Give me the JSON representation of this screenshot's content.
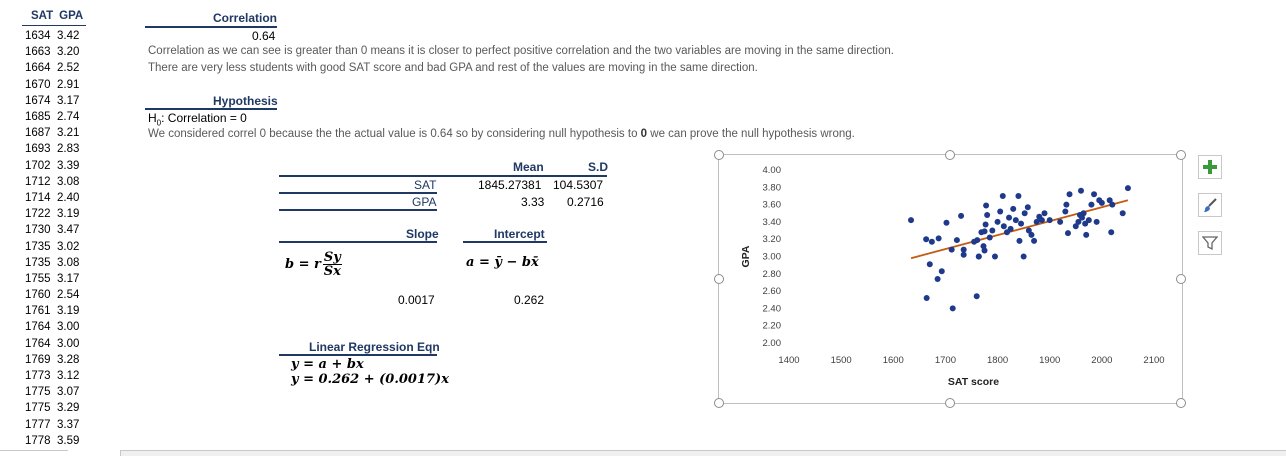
{
  "data_table": {
    "headers": [
      "SAT",
      "GPA"
    ],
    "rows": [
      [
        "1634",
        "3.42"
      ],
      [
        "1663",
        "3.20"
      ],
      [
        "1664",
        "2.52"
      ],
      [
        "1670",
        "2.91"
      ],
      [
        "1674",
        "3.17"
      ],
      [
        "1685",
        "2.74"
      ],
      [
        "1687",
        "3.21"
      ],
      [
        "1693",
        "2.83"
      ],
      [
        "1702",
        "3.39"
      ],
      [
        "1712",
        "3.08"
      ],
      [
        "1714",
        "2.40"
      ],
      [
        "1722",
        "3.19"
      ],
      [
        "1730",
        "3.47"
      ],
      [
        "1735",
        "3.02"
      ],
      [
        "1735",
        "3.08"
      ],
      [
        "1755",
        "3.17"
      ],
      [
        "1760",
        "2.54"
      ],
      [
        "1761",
        "3.19"
      ],
      [
        "1764",
        "3.00"
      ],
      [
        "1764",
        "3.00"
      ],
      [
        "1769",
        "3.28"
      ],
      [
        "1773",
        "3.12"
      ],
      [
        "1775",
        "3.07"
      ],
      [
        "1775",
        "3.29"
      ],
      [
        "1777",
        "3.37"
      ],
      [
        "1778",
        "3.59"
      ]
    ]
  },
  "correlation": {
    "heading": "Correlation",
    "value": "0.64",
    "line1": "Correlation as we can see is greater than 0 means it is closer to perfect positive correlation and the two variables are moving in the same direction.",
    "line2": "There are very less students with good SAT score and bad GPA and rest of the values are moving in the same direction."
  },
  "hypothesis": {
    "heading": "Hypothesis",
    "h0_prefix": "H",
    "h0_sub": "0",
    "h0_text": ": Correlation = 0",
    "desc_before": "We considered correl 0 because the the actual value is 0.64 so by considering null hypothesis to ",
    "desc_bold": "0",
    "desc_after": " we can prove the null hypothesis wrong."
  },
  "stats": {
    "mean_label": "Mean",
    "sd_label": "S.D",
    "sat_label": "SAT",
    "gpa_label": "GPA",
    "sat_mean": "1845.27381",
    "sat_sd": "104.5307",
    "gpa_mean": "3.33",
    "gpa_sd": "0.2716",
    "slope_label": "Slope",
    "intercept_label": "Intercept",
    "slope_formula_lhs": "b = r",
    "slope_formula_num": "Sy",
    "slope_formula_den": "Sx",
    "intercept_formula": "a = ȳ − bx̄",
    "slope_value": "0.0017",
    "intercept_value": "0.262"
  },
  "regression": {
    "heading": "Linear Regression Eqn",
    "eq1": "y = a + bx",
    "eq2": "y = 0.262 + (0.0017)x"
  },
  "toolbar": {
    "add_icon": "plus-icon",
    "style_icon": "paintbrush-icon",
    "filter_icon": "filter-icon",
    "accent": "#3a9a3a"
  },
  "chart_data": {
    "type": "scatter",
    "title": "",
    "xlabel": "SAT score",
    "ylabel": "GPA",
    "xlim": [
      1400,
      2100
    ],
    "ylim": [
      2.0,
      4.0
    ],
    "x_ticks": [
      "1400",
      "1500",
      "1600",
      "1700",
      "1800",
      "1900",
      "2000",
      "2100"
    ],
    "y_ticks": [
      "2.00",
      "2.20",
      "2.40",
      "2.60",
      "2.80",
      "3.00",
      "3.20",
      "3.40",
      "3.60",
      "3.80",
      "4.00"
    ],
    "point_color": "#1f3a8a",
    "trend_color": "#c55a11",
    "trendline": {
      "x": [
        1634,
        2050
      ],
      "y": [
        2.98,
        3.65
      ]
    },
    "points": [
      [
        1634,
        3.42
      ],
      [
        1663,
        3.2
      ],
      [
        1664,
        2.52
      ],
      [
        1670,
        2.91
      ],
      [
        1674,
        3.17
      ],
      [
        1685,
        2.74
      ],
      [
        1687,
        3.21
      ],
      [
        1693,
        2.83
      ],
      [
        1702,
        3.39
      ],
      [
        1712,
        3.08
      ],
      [
        1714,
        2.4
      ],
      [
        1722,
        3.19
      ],
      [
        1730,
        3.47
      ],
      [
        1735,
        3.02
      ],
      [
        1735,
        3.08
      ],
      [
        1755,
        3.17
      ],
      [
        1760,
        2.54
      ],
      [
        1761,
        3.19
      ],
      [
        1764,
        3.0
      ],
      [
        1764,
        3.0
      ],
      [
        1769,
        3.28
      ],
      [
        1773,
        3.12
      ],
      [
        1775,
        3.07
      ],
      [
        1775,
        3.29
      ],
      [
        1777,
        3.37
      ],
      [
        1778,
        3.59
      ],
      [
        1780,
        3.48
      ],
      [
        1785,
        3.22
      ],
      [
        1790,
        3.3
      ],
      [
        1795,
        3.0
      ],
      [
        1800,
        3.4
      ],
      [
        1805,
        3.52
      ],
      [
        1810,
        3.7
      ],
      [
        1812,
        3.35
      ],
      [
        1818,
        3.28
      ],
      [
        1822,
        3.45
      ],
      [
        1825,
        3.32
      ],
      [
        1830,
        3.55
      ],
      [
        1835,
        3.42
      ],
      [
        1840,
        3.7
      ],
      [
        1842,
        3.18
      ],
      [
        1845,
        3.38
      ],
      [
        1850,
        3.0
      ],
      [
        1852,
        3.5
      ],
      [
        1858,
        3.57
      ],
      [
        1860,
        3.3
      ],
      [
        1865,
        3.25
      ],
      [
        1870,
        3.18
      ],
      [
        1875,
        3.4
      ],
      [
        1880,
        3.46
      ],
      [
        1885,
        3.42
      ],
      [
        1890,
        3.5
      ],
      [
        1900,
        3.42
      ],
      [
        1920,
        3.4
      ],
      [
        1930,
        3.52
      ],
      [
        1932,
        3.6
      ],
      [
        1935,
        3.27
      ],
      [
        1938,
        3.72
      ],
      [
        1950,
        3.35
      ],
      [
        1955,
        3.4
      ],
      [
        1958,
        3.48
      ],
      [
        1960,
        3.76
      ],
      [
        1962,
        3.45
      ],
      [
        1965,
        3.5
      ],
      [
        1968,
        3.38
      ],
      [
        1970,
        3.25
      ],
      [
        1975,
        3.42
      ],
      [
        1980,
        3.6
      ],
      [
        1985,
        3.72
      ],
      [
        1990,
        3.4
      ],
      [
        1995,
        3.65
      ],
      [
        2000,
        3.62
      ],
      [
        2015,
        3.65
      ],
      [
        2018,
        3.28
      ],
      [
        2020,
        3.6
      ],
      [
        2040,
        3.5
      ],
      [
        2050,
        3.79
      ]
    ]
  }
}
